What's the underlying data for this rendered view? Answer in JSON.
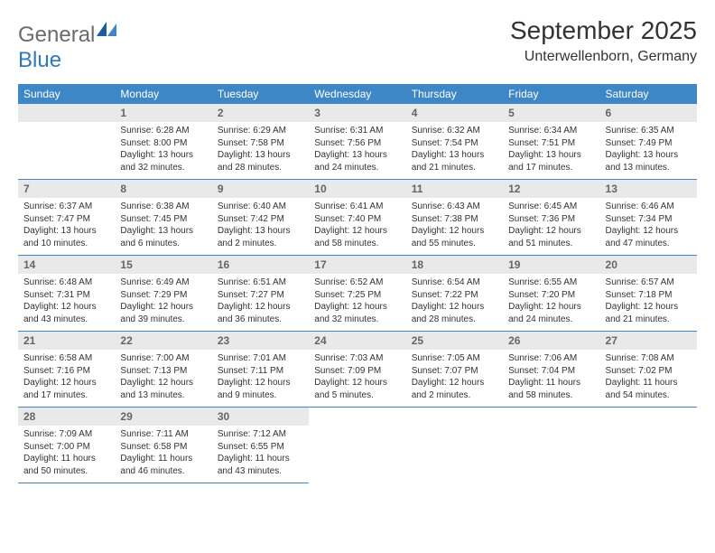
{
  "logo": {
    "text_general": "General",
    "text_blue": "Blue",
    "icon_fill": "#1d5e9e",
    "icon_fill2": "#3d87c7"
  },
  "header": {
    "month_title": "September 2025",
    "location": "Unterwellenborn, Germany"
  },
  "theme": {
    "header_bg": "#3d87c7",
    "header_fg": "#ffffff",
    "daynum_bg": "#e9e9e9",
    "daynum_fg": "#666666",
    "body_text": "#333333",
    "rule_color": "#3d87c7",
    "page_bg": "#ffffff"
  },
  "daynames": [
    "Sunday",
    "Monday",
    "Tuesday",
    "Wednesday",
    "Thursday",
    "Friday",
    "Saturday"
  ],
  "weeks": [
    [
      null,
      {
        "n": "1",
        "sr": "Sunrise: 6:28 AM",
        "ss": "Sunset: 8:00 PM",
        "dl": "Daylight: 13 hours and 32 minutes."
      },
      {
        "n": "2",
        "sr": "Sunrise: 6:29 AM",
        "ss": "Sunset: 7:58 PM",
        "dl": "Daylight: 13 hours and 28 minutes."
      },
      {
        "n": "3",
        "sr": "Sunrise: 6:31 AM",
        "ss": "Sunset: 7:56 PM",
        "dl": "Daylight: 13 hours and 24 minutes."
      },
      {
        "n": "4",
        "sr": "Sunrise: 6:32 AM",
        "ss": "Sunset: 7:54 PM",
        "dl": "Daylight: 13 hours and 21 minutes."
      },
      {
        "n": "5",
        "sr": "Sunrise: 6:34 AM",
        "ss": "Sunset: 7:51 PM",
        "dl": "Daylight: 13 hours and 17 minutes."
      },
      {
        "n": "6",
        "sr": "Sunrise: 6:35 AM",
        "ss": "Sunset: 7:49 PM",
        "dl": "Daylight: 13 hours and 13 minutes."
      }
    ],
    [
      {
        "n": "7",
        "sr": "Sunrise: 6:37 AM",
        "ss": "Sunset: 7:47 PM",
        "dl": "Daylight: 13 hours and 10 minutes."
      },
      {
        "n": "8",
        "sr": "Sunrise: 6:38 AM",
        "ss": "Sunset: 7:45 PM",
        "dl": "Daylight: 13 hours and 6 minutes."
      },
      {
        "n": "9",
        "sr": "Sunrise: 6:40 AM",
        "ss": "Sunset: 7:42 PM",
        "dl": "Daylight: 13 hours and 2 minutes."
      },
      {
        "n": "10",
        "sr": "Sunrise: 6:41 AM",
        "ss": "Sunset: 7:40 PM",
        "dl": "Daylight: 12 hours and 58 minutes."
      },
      {
        "n": "11",
        "sr": "Sunrise: 6:43 AM",
        "ss": "Sunset: 7:38 PM",
        "dl": "Daylight: 12 hours and 55 minutes."
      },
      {
        "n": "12",
        "sr": "Sunrise: 6:45 AM",
        "ss": "Sunset: 7:36 PM",
        "dl": "Daylight: 12 hours and 51 minutes."
      },
      {
        "n": "13",
        "sr": "Sunrise: 6:46 AM",
        "ss": "Sunset: 7:34 PM",
        "dl": "Daylight: 12 hours and 47 minutes."
      }
    ],
    [
      {
        "n": "14",
        "sr": "Sunrise: 6:48 AM",
        "ss": "Sunset: 7:31 PM",
        "dl": "Daylight: 12 hours and 43 minutes."
      },
      {
        "n": "15",
        "sr": "Sunrise: 6:49 AM",
        "ss": "Sunset: 7:29 PM",
        "dl": "Daylight: 12 hours and 39 minutes."
      },
      {
        "n": "16",
        "sr": "Sunrise: 6:51 AM",
        "ss": "Sunset: 7:27 PM",
        "dl": "Daylight: 12 hours and 36 minutes."
      },
      {
        "n": "17",
        "sr": "Sunrise: 6:52 AM",
        "ss": "Sunset: 7:25 PM",
        "dl": "Daylight: 12 hours and 32 minutes."
      },
      {
        "n": "18",
        "sr": "Sunrise: 6:54 AM",
        "ss": "Sunset: 7:22 PM",
        "dl": "Daylight: 12 hours and 28 minutes."
      },
      {
        "n": "19",
        "sr": "Sunrise: 6:55 AM",
        "ss": "Sunset: 7:20 PM",
        "dl": "Daylight: 12 hours and 24 minutes."
      },
      {
        "n": "20",
        "sr": "Sunrise: 6:57 AM",
        "ss": "Sunset: 7:18 PM",
        "dl": "Daylight: 12 hours and 21 minutes."
      }
    ],
    [
      {
        "n": "21",
        "sr": "Sunrise: 6:58 AM",
        "ss": "Sunset: 7:16 PM",
        "dl": "Daylight: 12 hours and 17 minutes."
      },
      {
        "n": "22",
        "sr": "Sunrise: 7:00 AM",
        "ss": "Sunset: 7:13 PM",
        "dl": "Daylight: 12 hours and 13 minutes."
      },
      {
        "n": "23",
        "sr": "Sunrise: 7:01 AM",
        "ss": "Sunset: 7:11 PM",
        "dl": "Daylight: 12 hours and 9 minutes."
      },
      {
        "n": "24",
        "sr": "Sunrise: 7:03 AM",
        "ss": "Sunset: 7:09 PM",
        "dl": "Daylight: 12 hours and 5 minutes."
      },
      {
        "n": "25",
        "sr": "Sunrise: 7:05 AM",
        "ss": "Sunset: 7:07 PM",
        "dl": "Daylight: 12 hours and 2 minutes."
      },
      {
        "n": "26",
        "sr": "Sunrise: 7:06 AM",
        "ss": "Sunset: 7:04 PM",
        "dl": "Daylight: 11 hours and 58 minutes."
      },
      {
        "n": "27",
        "sr": "Sunrise: 7:08 AM",
        "ss": "Sunset: 7:02 PM",
        "dl": "Daylight: 11 hours and 54 minutes."
      }
    ],
    [
      {
        "n": "28",
        "sr": "Sunrise: 7:09 AM",
        "ss": "Sunset: 7:00 PM",
        "dl": "Daylight: 11 hours and 50 minutes."
      },
      {
        "n": "29",
        "sr": "Sunrise: 7:11 AM",
        "ss": "Sunset: 6:58 PM",
        "dl": "Daylight: 11 hours and 46 minutes."
      },
      {
        "n": "30",
        "sr": "Sunrise: 7:12 AM",
        "ss": "Sunset: 6:55 PM",
        "dl": "Daylight: 11 hours and 43 minutes."
      },
      null,
      null,
      null,
      null
    ]
  ]
}
